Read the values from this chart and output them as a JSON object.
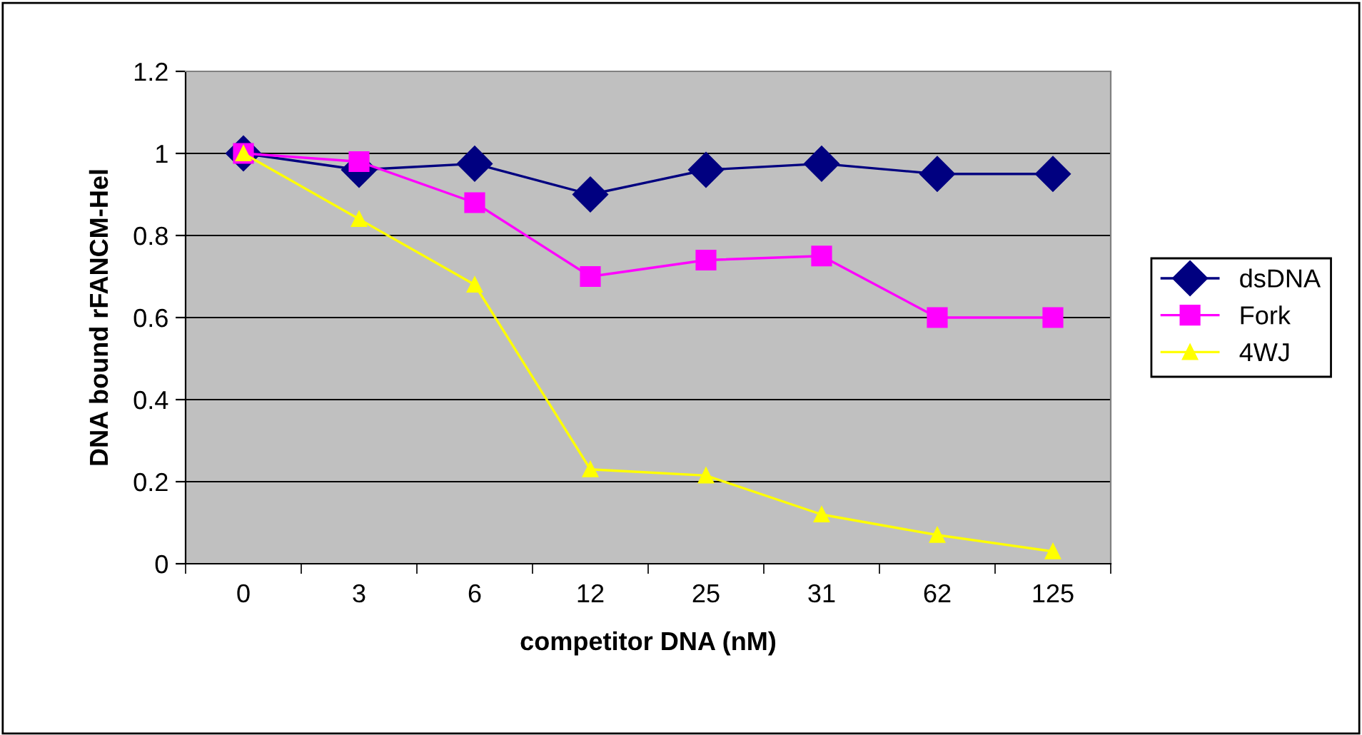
{
  "chart_data": {
    "type": "line",
    "xlabel": "competitor DNA (nM)",
    "ylabel": "DNA bound rFANCM-Hel",
    "categories": [
      "0",
      "3",
      "6",
      "12",
      "25",
      "31",
      "62",
      "125"
    ],
    "series": [
      {
        "name": "dsDNA",
        "color": "#000080",
        "marker": "diamond",
        "values": [
          1.0,
          0.96,
          0.975,
          0.9,
          0.96,
          0.975,
          0.95,
          0.95
        ]
      },
      {
        "name": "Fork",
        "color": "#ff00ff",
        "marker": "square",
        "values": [
          1.0,
          0.98,
          0.88,
          0.7,
          0.74,
          0.75,
          0.6,
          0.6
        ]
      },
      {
        "name": "4WJ",
        "color": "#ffff00",
        "marker": "triangle",
        "values": [
          1.0,
          0.84,
          0.68,
          0.23,
          0.215,
          0.12,
          0.07,
          0.03
        ]
      }
    ],
    "ylim": [
      0,
      1.2
    ],
    "yticks": [
      0,
      0.2,
      0.4,
      0.6,
      0.8,
      1,
      1.2
    ],
    "grid": "y",
    "legend": "right"
  }
}
